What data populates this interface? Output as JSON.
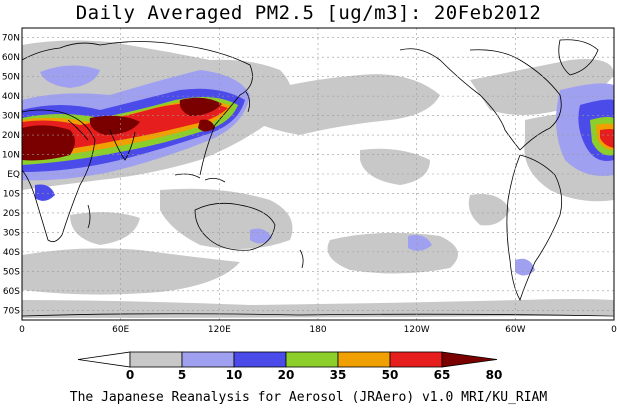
{
  "title": "Daily Averaged PM2.5 [ug/m3]: 20Feb2012",
  "credit": "The Japanese Reanalysis for Aerosol (JRAero) v1.0 MRI/KU_RIAM",
  "map": {
    "lat_labels": [
      "70N",
      "60N",
      "50N",
      "40N",
      "30N",
      "20N",
      "10N",
      "EQ",
      "10S",
      "20S",
      "30S",
      "40S",
      "50S",
      "60S",
      "70S"
    ],
    "lon_labels": [
      "0",
      "60E",
      "120E",
      "180",
      "120W",
      "60W",
      "0"
    ],
    "lat_range": [
      -75,
      75
    ],
    "lon_range": [
      0,
      360
    ],
    "grid": true
  },
  "legend": {
    "levels": [
      "0",
      "5",
      "10",
      "20",
      "35",
      "50",
      "65",
      "80"
    ],
    "colors": [
      "#ffffff",
      "#c8c8c8",
      "#a0a0f0",
      "#4b4bea",
      "#8ccf2a",
      "#f0a000",
      "#e61e1e",
      "#7a0000"
    ]
  }
}
